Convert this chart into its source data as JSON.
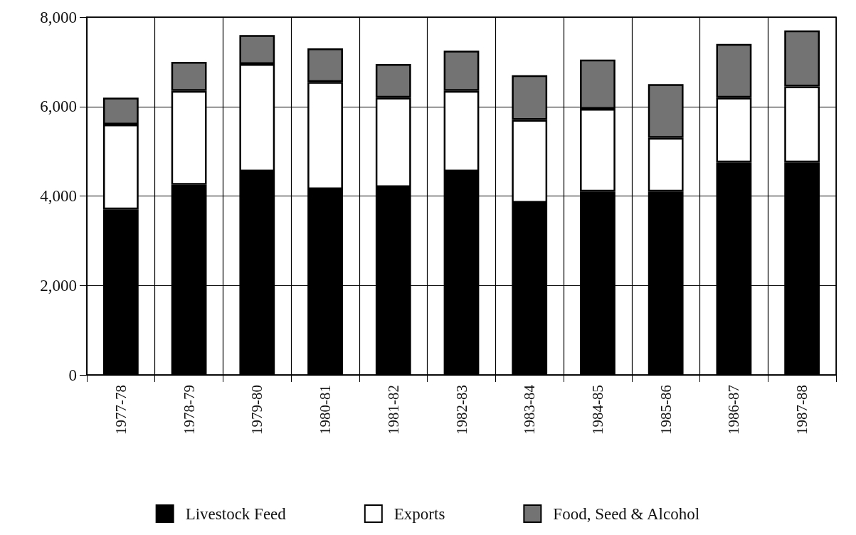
{
  "chart_data": {
    "type": "bar",
    "stacked": true,
    "categories": [
      "1977-78",
      "1978-79",
      "1979-80",
      "1980-81",
      "1981-82",
      "1982-83",
      "1983-84",
      "1984-85",
      "1985-86",
      "1986-87",
      "1987-88"
    ],
    "series": [
      {
        "name": "Livestock Feed",
        "color": "#000000",
        "values": [
          3700,
          4250,
          4550,
          4150,
          4200,
          4550,
          3850,
          4100,
          4100,
          4750,
          4750
        ]
      },
      {
        "name": "Exports",
        "color": "#ffffff",
        "values": [
          1900,
          2100,
          2400,
          2400,
          2000,
          1800,
          1850,
          1850,
          1200,
          1450,
          1700
        ]
      },
      {
        "name": "Food, Seed & Alcohol",
        "color": "#737373",
        "values": [
          600,
          650,
          650,
          750,
          750,
          900,
          1000,
          1100,
          1200,
          1200,
          1250
        ]
      }
    ],
    "ylim": [
      0,
      8000
    ],
    "yticks": [
      0,
      {
        "value": 2000,
        "label": "2,000"
      },
      {
        "value": 4000,
        "label": "4,000"
      },
      {
        "value": 6000,
        "label": "6,000"
      },
      {
        "value": 8000,
        "label": "8,000"
      }
    ],
    "grid": true,
    "legend": "bottom"
  }
}
